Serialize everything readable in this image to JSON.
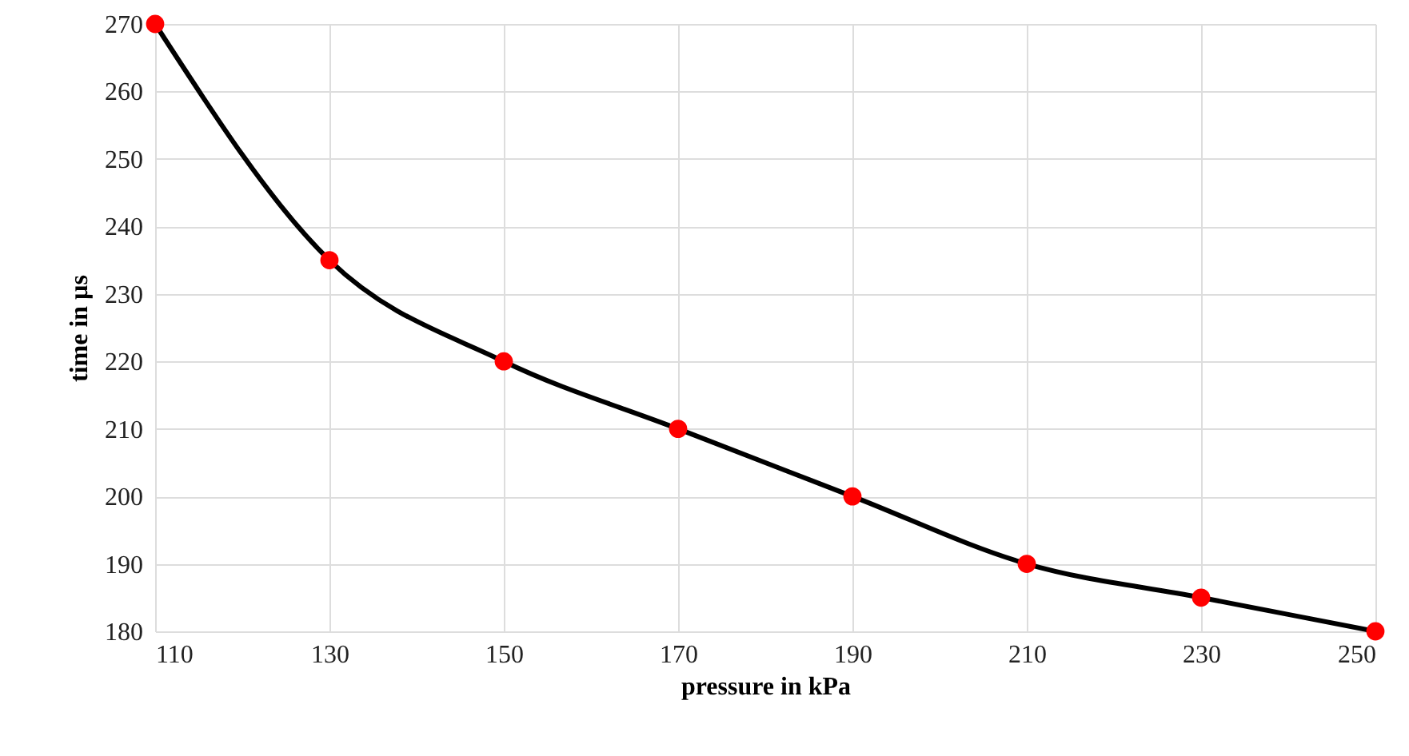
{
  "chart_data": {
    "type": "line",
    "xlabel": "pressure in kPa",
    "ylabel": "time in µs",
    "x": [
      110,
      130,
      150,
      170,
      190,
      210,
      230,
      250
    ],
    "series": [
      {
        "color": "#000000",
        "marker": "none",
        "values": [
          270,
          235,
          220,
          210,
          200,
          190,
          185,
          180
        ]
      },
      {
        "type": "scatter",
        "color": "#ff0000",
        "marker": "circle",
        "values": [
          270,
          235,
          220,
          210,
          200,
          190,
          185,
          180
        ]
      }
    ],
    "xlim": [
      110,
      250
    ],
    "xticks": [
      110,
      130,
      150,
      170,
      190,
      210,
      230,
      250
    ],
    "ylim": [
      180,
      270
    ],
    "yticks": [
      180,
      190,
      200,
      210,
      220,
      230,
      240,
      250,
      260,
      270
    ],
    "grid": true
  }
}
